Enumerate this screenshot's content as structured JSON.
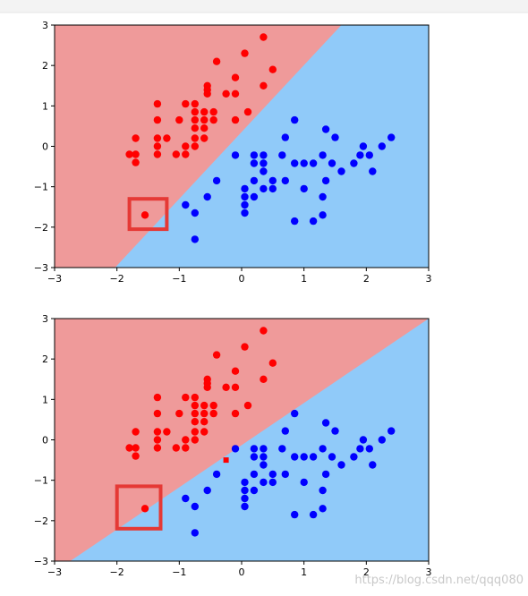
{
  "page": {
    "watermark": "https://blog.csdn.net/qqq080"
  },
  "colors": {
    "red_region": "#ef9a9a",
    "blue_region": "#90caf9",
    "red_point": "#ff0000",
    "blue_point": "#0000ff",
    "highlight_box": "#e53935",
    "top_border": "#f0f0f0"
  },
  "chart_data": [
    {
      "type": "scatter",
      "title": "",
      "xlabel": "",
      "ylabel": "",
      "xlim": [
        -3,
        3
      ],
      "ylim": [
        -3,
        3
      ],
      "xticks": [
        "−3",
        "−2",
        "−1",
        "0",
        "1",
        "2",
        "3"
      ],
      "yticks": [
        "−3",
        "−2",
        "−1",
        "0",
        "1",
        "2",
        "3"
      ],
      "grid": false,
      "decision_boundary": {
        "points": [
          [
            -2.03,
            -3.0
          ],
          [
            1.6,
            3.0
          ]
        ],
        "left_class": "red",
        "right_class": "blue"
      },
      "highlight": {
        "x": [
          -1.8,
          -1.2
        ],
        "y": [
          -2.05,
          -1.3
        ]
      },
      "series": [
        {
          "class": "red",
          "points": [
            [
              0.35,
              2.7
            ],
            [
              0.05,
              2.3
            ],
            [
              -0.4,
              2.1
            ],
            [
              0.5,
              1.9
            ],
            [
              -0.1,
              1.7
            ],
            [
              -0.55,
              1.5
            ],
            [
              -0.55,
              1.4
            ],
            [
              0.35,
              1.5
            ],
            [
              -0.25,
              1.3
            ],
            [
              -0.1,
              1.3
            ],
            [
              -0.55,
              1.3
            ],
            [
              -1.35,
              1.05
            ],
            [
              -0.9,
              1.05
            ],
            [
              -0.75,
              1.05
            ],
            [
              -0.75,
              0.85
            ],
            [
              -0.6,
              0.85
            ],
            [
              -0.45,
              0.85
            ],
            [
              0.1,
              0.85
            ],
            [
              -1.35,
              0.65
            ],
            [
              -1.0,
              0.65
            ],
            [
              -0.75,
              0.65
            ],
            [
              -0.6,
              0.65
            ],
            [
              -0.45,
              0.65
            ],
            [
              -0.1,
              0.65
            ],
            [
              -0.75,
              0.45
            ],
            [
              -0.6,
              0.45
            ],
            [
              -1.7,
              0.2
            ],
            [
              -1.35,
              0.2
            ],
            [
              -1.2,
              0.2
            ],
            [
              -0.75,
              0.2
            ],
            [
              -0.6,
              0.2
            ],
            [
              -1.35,
              0.0
            ],
            [
              -0.9,
              0.0
            ],
            [
              -0.75,
              0.0
            ],
            [
              -1.8,
              -0.2
            ],
            [
              -1.7,
              -0.2
            ],
            [
              -1.35,
              -0.2
            ],
            [
              -1.05,
              -0.2
            ],
            [
              -0.9,
              -0.2
            ],
            [
              -1.7,
              -0.4
            ],
            [
              -1.55,
              -1.7
            ]
          ]
        },
        {
          "class": "blue",
          "points": [
            [
              0.85,
              0.65
            ],
            [
              1.35,
              0.42
            ],
            [
              1.5,
              0.22
            ],
            [
              0.7,
              0.22
            ],
            [
              1.95,
              0.0
            ],
            [
              2.25,
              0.0
            ],
            [
              2.4,
              0.22
            ],
            [
              -0.1,
              -0.22
            ],
            [
              0.2,
              -0.22
            ],
            [
              0.35,
              -0.22
            ],
            [
              0.65,
              -0.22
            ],
            [
              1.3,
              -0.22
            ],
            [
              1.9,
              -0.22
            ],
            [
              2.05,
              -0.22
            ],
            [
              0.2,
              -0.42
            ],
            [
              0.35,
              -0.42
            ],
            [
              0.85,
              -0.42
            ],
            [
              1.0,
              -0.42
            ],
            [
              1.15,
              -0.42
            ],
            [
              1.45,
              -0.42
            ],
            [
              1.8,
              -0.42
            ],
            [
              0.35,
              -0.62
            ],
            [
              1.6,
              -0.62
            ],
            [
              2.1,
              -0.62
            ],
            [
              -0.4,
              -0.85
            ],
            [
              0.2,
              -0.85
            ],
            [
              0.5,
              -0.85
            ],
            [
              0.7,
              -0.85
            ],
            [
              1.35,
              -0.85
            ],
            [
              0.05,
              -1.05
            ],
            [
              0.35,
              -1.05
            ],
            [
              0.5,
              -1.05
            ],
            [
              1.0,
              -1.05
            ],
            [
              -0.55,
              -1.25
            ],
            [
              0.05,
              -1.25
            ],
            [
              0.2,
              -1.25
            ],
            [
              1.3,
              -1.25
            ],
            [
              0.05,
              -1.45
            ],
            [
              -0.9,
              -1.45
            ],
            [
              0.05,
              -1.65
            ],
            [
              -0.75,
              -1.65
            ],
            [
              1.3,
              -1.7
            ],
            [
              0.85,
              -1.85
            ],
            [
              1.15,
              -1.85
            ],
            [
              -0.75,
              -2.3
            ]
          ]
        }
      ]
    },
    {
      "type": "scatter",
      "title": "",
      "xlabel": "",
      "ylabel": "",
      "xlim": [
        -3,
        3
      ],
      "ylim": [
        -3,
        3
      ],
      "xticks": [
        "−3",
        "−2",
        "−1",
        "0",
        "1",
        "2",
        "3"
      ],
      "yticks": [
        "−3",
        "−2",
        "−1",
        "0",
        "1",
        "2",
        "3"
      ],
      "grid": false,
      "decision_boundary": {
        "points": [
          [
            -2.75,
            -3.0
          ],
          [
            3.0,
            3.0
          ]
        ],
        "left_class": "red",
        "right_class": "blue"
      },
      "highlight": {
        "x": [
          -2.0,
          -1.3
        ],
        "y": [
          -2.2,
          -1.15
        ]
      },
      "marker_square": {
        "x": -0.25,
        "y": -0.5,
        "color": "#ff0000"
      },
      "series": [
        {
          "class": "red",
          "points": [
            [
              0.35,
              2.7
            ],
            [
              0.05,
              2.3
            ],
            [
              -0.4,
              2.1
            ],
            [
              0.5,
              1.9
            ],
            [
              -0.1,
              1.7
            ],
            [
              -0.55,
              1.5
            ],
            [
              -0.55,
              1.4
            ],
            [
              0.35,
              1.5
            ],
            [
              -0.25,
              1.3
            ],
            [
              -0.1,
              1.3
            ],
            [
              -0.55,
              1.3
            ],
            [
              -1.35,
              1.05
            ],
            [
              -0.9,
              1.05
            ],
            [
              -0.75,
              1.05
            ],
            [
              -0.75,
              0.85
            ],
            [
              -0.6,
              0.85
            ],
            [
              -0.45,
              0.85
            ],
            [
              0.1,
              0.85
            ],
            [
              -1.35,
              0.65
            ],
            [
              -1.0,
              0.65
            ],
            [
              -0.75,
              0.65
            ],
            [
              -0.6,
              0.65
            ],
            [
              -0.45,
              0.65
            ],
            [
              -0.1,
              0.65
            ],
            [
              -0.75,
              0.45
            ],
            [
              -0.6,
              0.45
            ],
            [
              -1.7,
              0.2
            ],
            [
              -1.35,
              0.2
            ],
            [
              -1.2,
              0.2
            ],
            [
              -0.75,
              0.2
            ],
            [
              -0.6,
              0.2
            ],
            [
              -1.35,
              0.0
            ],
            [
              -0.9,
              0.0
            ],
            [
              -0.75,
              0.0
            ],
            [
              -1.8,
              -0.2
            ],
            [
              -1.7,
              -0.2
            ],
            [
              -1.35,
              -0.2
            ],
            [
              -1.05,
              -0.2
            ],
            [
              -0.9,
              -0.2
            ],
            [
              -1.7,
              -0.4
            ],
            [
              -1.55,
              -1.7
            ]
          ]
        },
        {
          "class": "blue",
          "points": [
            [
              0.85,
              0.65
            ],
            [
              1.35,
              0.42
            ],
            [
              1.5,
              0.22
            ],
            [
              0.7,
              0.22
            ],
            [
              1.95,
              0.0
            ],
            [
              2.25,
              0.0
            ],
            [
              2.4,
              0.22
            ],
            [
              -0.1,
              -0.22
            ],
            [
              0.2,
              -0.22
            ],
            [
              0.35,
              -0.22
            ],
            [
              0.65,
              -0.22
            ],
            [
              1.3,
              -0.22
            ],
            [
              1.9,
              -0.22
            ],
            [
              2.05,
              -0.22
            ],
            [
              0.2,
              -0.42
            ],
            [
              0.35,
              -0.42
            ],
            [
              0.85,
              -0.42
            ],
            [
              1.0,
              -0.42
            ],
            [
              1.15,
              -0.42
            ],
            [
              1.45,
              -0.42
            ],
            [
              1.8,
              -0.42
            ],
            [
              0.35,
              -0.62
            ],
            [
              1.6,
              -0.62
            ],
            [
              2.1,
              -0.62
            ],
            [
              -0.4,
              -0.85
            ],
            [
              0.2,
              -0.85
            ],
            [
              0.5,
              -0.85
            ],
            [
              0.7,
              -0.85
            ],
            [
              1.35,
              -0.85
            ],
            [
              0.05,
              -1.05
            ],
            [
              0.35,
              -1.05
            ],
            [
              0.5,
              -1.05
            ],
            [
              1.0,
              -1.05
            ],
            [
              -0.55,
              -1.25
            ],
            [
              0.05,
              -1.25
            ],
            [
              0.2,
              -1.25
            ],
            [
              1.3,
              -1.25
            ],
            [
              0.05,
              -1.45
            ],
            [
              -0.9,
              -1.45
            ],
            [
              0.05,
              -1.65
            ],
            [
              -0.75,
              -1.65
            ],
            [
              1.3,
              -1.7
            ],
            [
              0.85,
              -1.85
            ],
            [
              1.15,
              -1.85
            ],
            [
              -0.75,
              -2.3
            ]
          ]
        }
      ]
    }
  ]
}
